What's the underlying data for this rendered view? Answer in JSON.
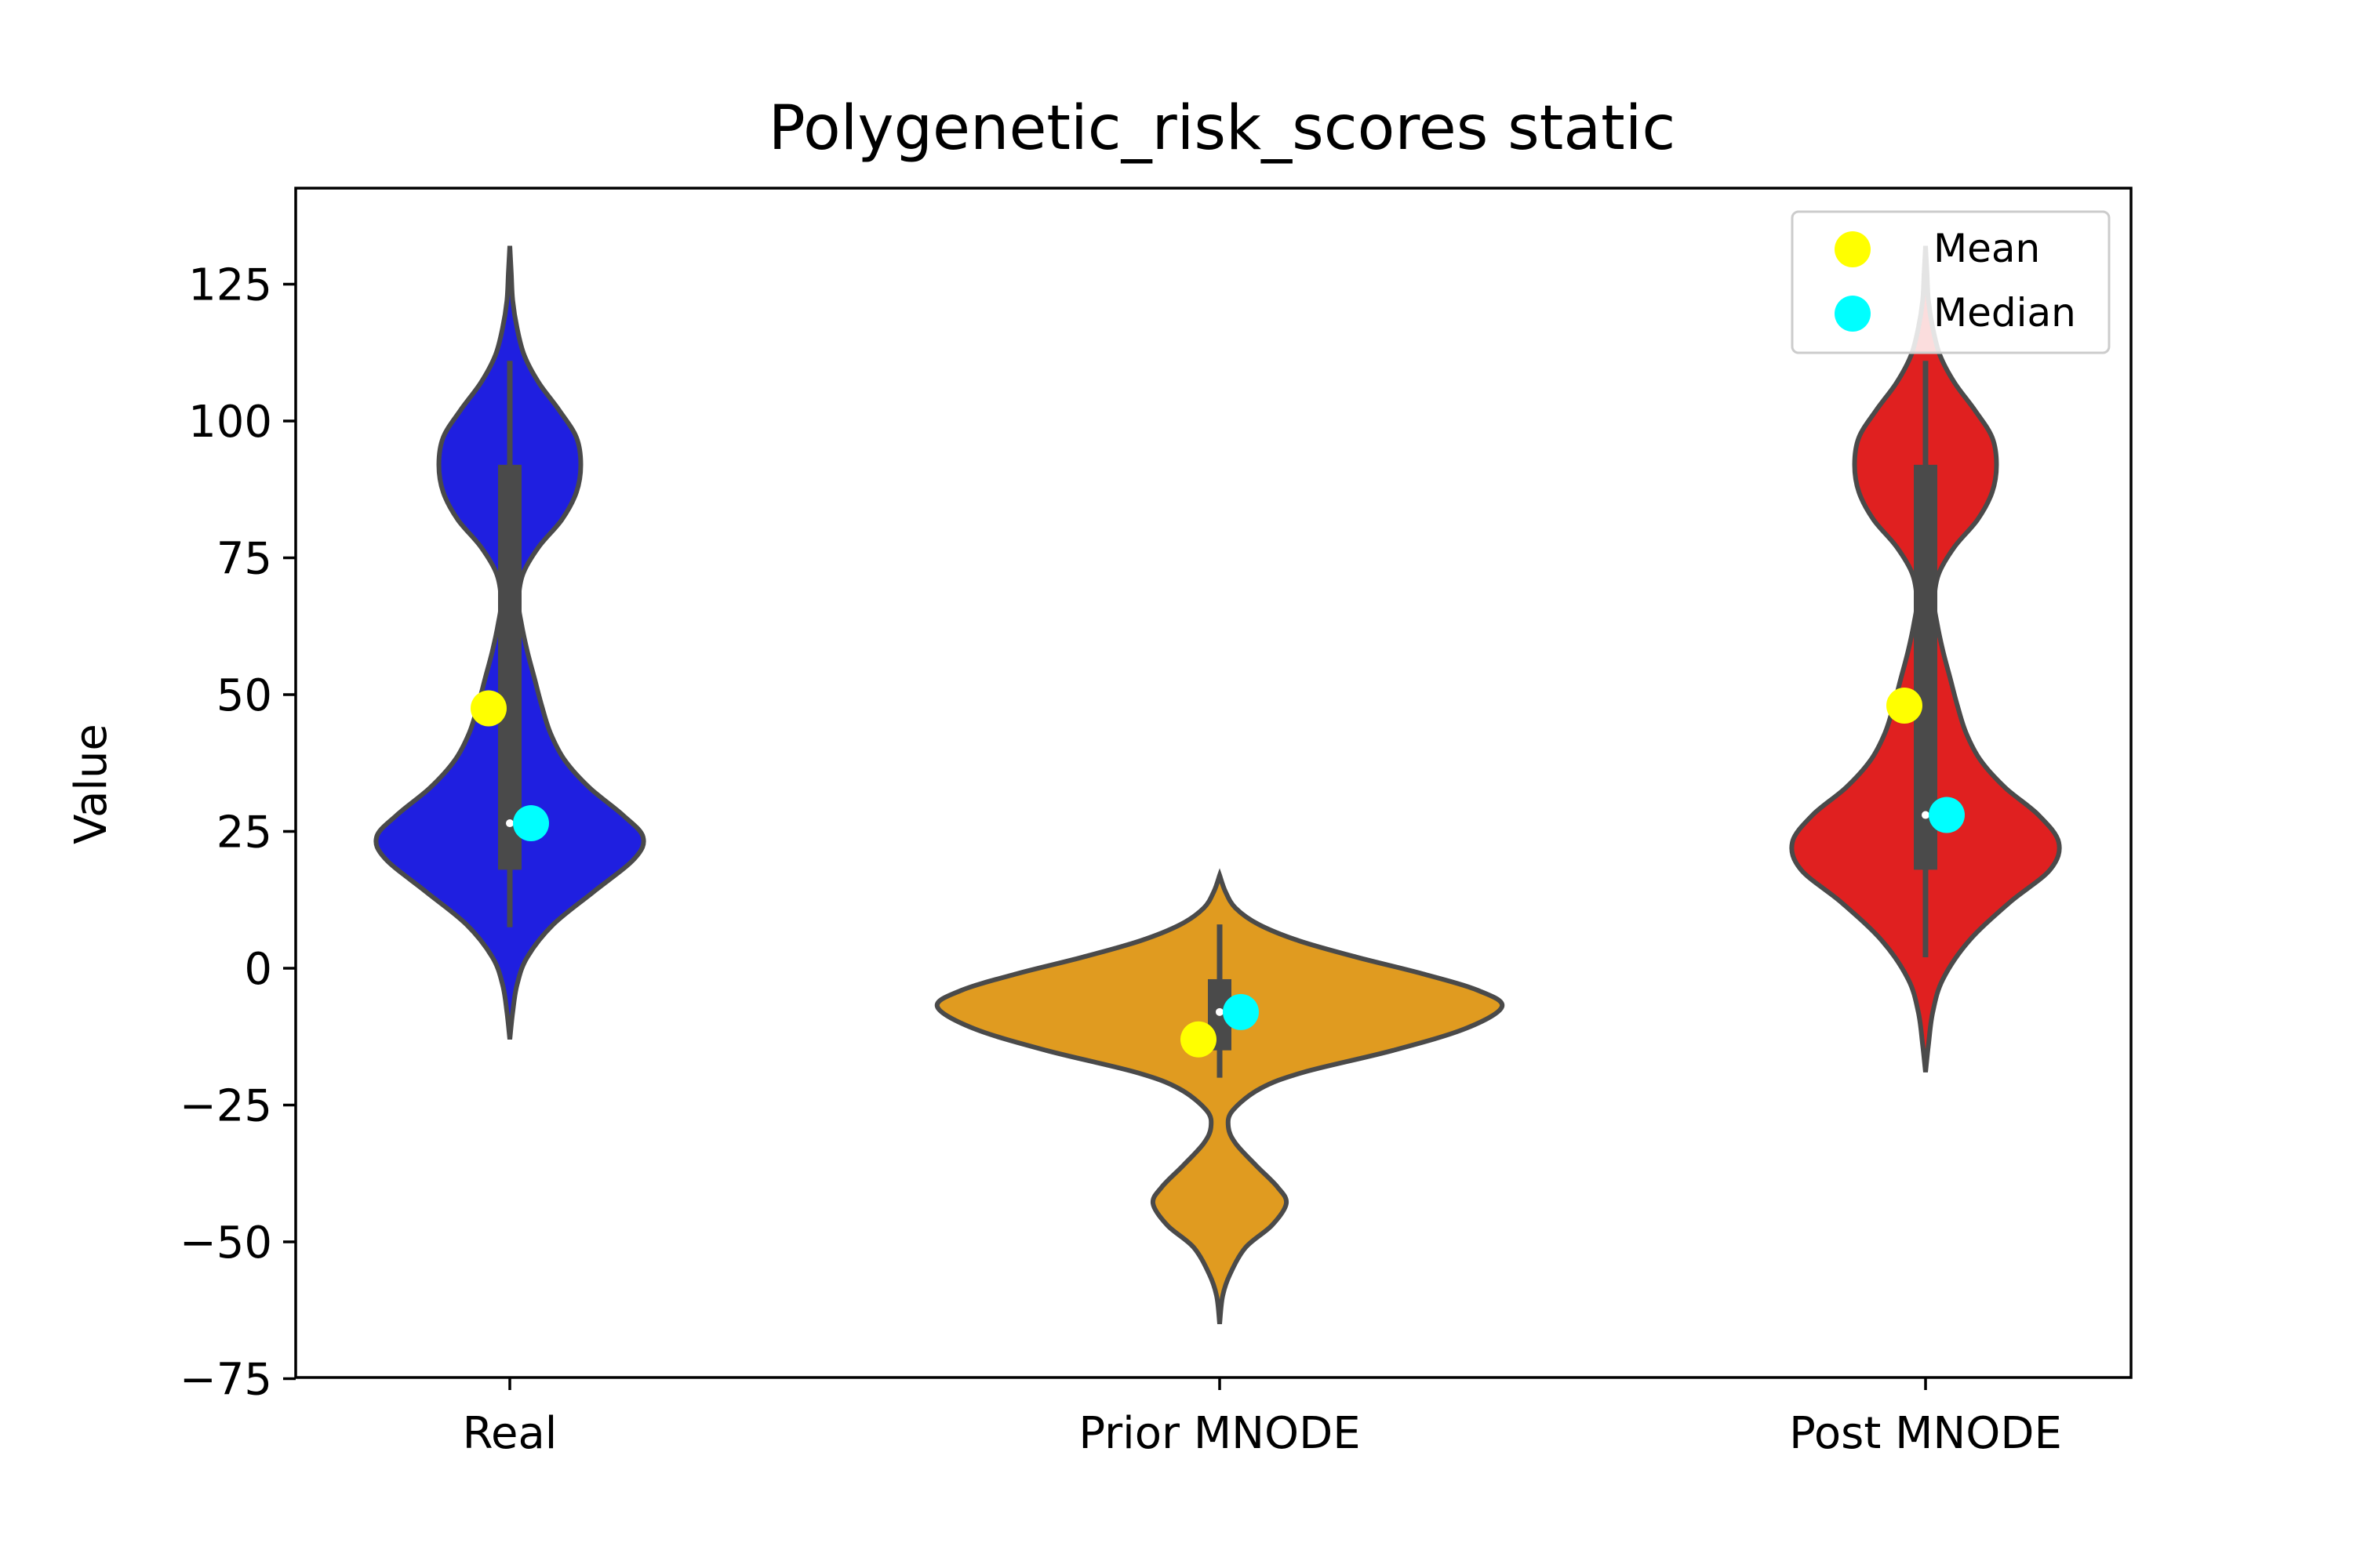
{
  "chart_data": {
    "type": "violin",
    "title": "Polygenetic_risk_scores static",
    "xlabel": "",
    "ylabel": "Value",
    "ylim": [
      -75,
      140
    ],
    "yticks": [
      -75,
      -50,
      -25,
      0,
      25,
      50,
      75,
      100,
      125
    ],
    "ytick_labels": [
      "−75",
      "−50",
      "−25",
      "0",
      "25",
      "50",
      "75",
      "100",
      "125"
    ],
    "categories": [
      "Real",
      "Prior MNODE",
      "Post MNODE"
    ],
    "legend": {
      "position": "top-right",
      "entries": [
        {
          "label": "Mean",
          "color": "#ffff00"
        },
        {
          "label": "Median",
          "color": "#00ffff"
        }
      ]
    },
    "series": [
      {
        "category": "Real",
        "color": "#1f1fe0",
        "mean": 47.5,
        "median": 26.5,
        "box": {
          "q1": 18,
          "q3": 92,
          "whisker_low": 7.5,
          "whisker_high": 111
        },
        "density": [
          [
            -13,
            0.0
          ],
          [
            -8,
            0.02
          ],
          [
            -3,
            0.05
          ],
          [
            2,
            0.12
          ],
          [
            8,
            0.3
          ],
          [
            14,
            0.58
          ],
          [
            20,
            0.86
          ],
          [
            24,
            0.92
          ],
          [
            28,
            0.78
          ],
          [
            33,
            0.55
          ],
          [
            38,
            0.38
          ],
          [
            43,
            0.28
          ],
          [
            48,
            0.22
          ],
          [
            53,
            0.17
          ],
          [
            58,
            0.12
          ],
          [
            63,
            0.08
          ],
          [
            67,
            0.06
          ],
          [
            72,
            0.09
          ],
          [
            77,
            0.2
          ],
          [
            82,
            0.36
          ],
          [
            87,
            0.46
          ],
          [
            92,
            0.49
          ],
          [
            97,
            0.46
          ],
          [
            102,
            0.34
          ],
          [
            107,
            0.2
          ],
          [
            112,
            0.1
          ],
          [
            117,
            0.05
          ],
          [
            122,
            0.02
          ],
          [
            127,
            0.01
          ],
          [
            132,
            0.0
          ]
        ]
      },
      {
        "category": "Prior MNODE",
        "color": "#e09b20",
        "mean": -13,
        "median": -8,
        "box": {
          "q1": -15,
          "q3": -2,
          "whisker_low": -20,
          "whisker_high": 8
        },
        "density": [
          [
            -65,
            0.0
          ],
          [
            -60,
            0.02
          ],
          [
            -56,
            0.07
          ],
          [
            -51,
            0.18
          ],
          [
            -47,
            0.36
          ],
          [
            -43,
            0.46
          ],
          [
            -40,
            0.4
          ],
          [
            -36,
            0.25
          ],
          [
            -32,
            0.11
          ],
          [
            -29,
            0.06
          ],
          [
            -26,
            0.09
          ],
          [
            -22,
            0.28
          ],
          [
            -19,
            0.58
          ],
          [
            -15,
            1.2
          ],
          [
            -11,
            1.7
          ],
          [
            -7,
            1.95
          ],
          [
            -4,
            1.78
          ],
          [
            -1,
            1.4
          ],
          [
            2,
            0.95
          ],
          [
            5,
            0.55
          ],
          [
            8,
            0.27
          ],
          [
            11,
            0.11
          ],
          [
            14,
            0.04
          ],
          [
            17,
            0.0
          ]
        ]
      },
      {
        "category": "Post MNODE",
        "color": "#e02020",
        "mean": 48,
        "median": 28,
        "box": {
          "q1": 18,
          "q3": 92,
          "whisker_low": 2,
          "whisker_high": 111
        },
        "density": [
          [
            -19,
            0.0
          ],
          [
            -14,
            0.02
          ],
          [
            -8,
            0.05
          ],
          [
            -2,
            0.12
          ],
          [
            5,
            0.3
          ],
          [
            12,
            0.58
          ],
          [
            18,
            0.86
          ],
          [
            23,
            0.92
          ],
          [
            28,
            0.78
          ],
          [
            33,
            0.55
          ],
          [
            38,
            0.38
          ],
          [
            43,
            0.28
          ],
          [
            48,
            0.22
          ],
          [
            53,
            0.17
          ],
          [
            58,
            0.12
          ],
          [
            63,
            0.08
          ],
          [
            67,
            0.06
          ],
          [
            72,
            0.09
          ],
          [
            77,
            0.2
          ],
          [
            82,
            0.36
          ],
          [
            87,
            0.46
          ],
          [
            92,
            0.49
          ],
          [
            97,
            0.46
          ],
          [
            102,
            0.34
          ],
          [
            107,
            0.2
          ],
          [
            112,
            0.1
          ],
          [
            117,
            0.05
          ],
          [
            122,
            0.02
          ],
          [
            127,
            0.01
          ],
          [
            132,
            0.0
          ]
        ]
      }
    ]
  }
}
